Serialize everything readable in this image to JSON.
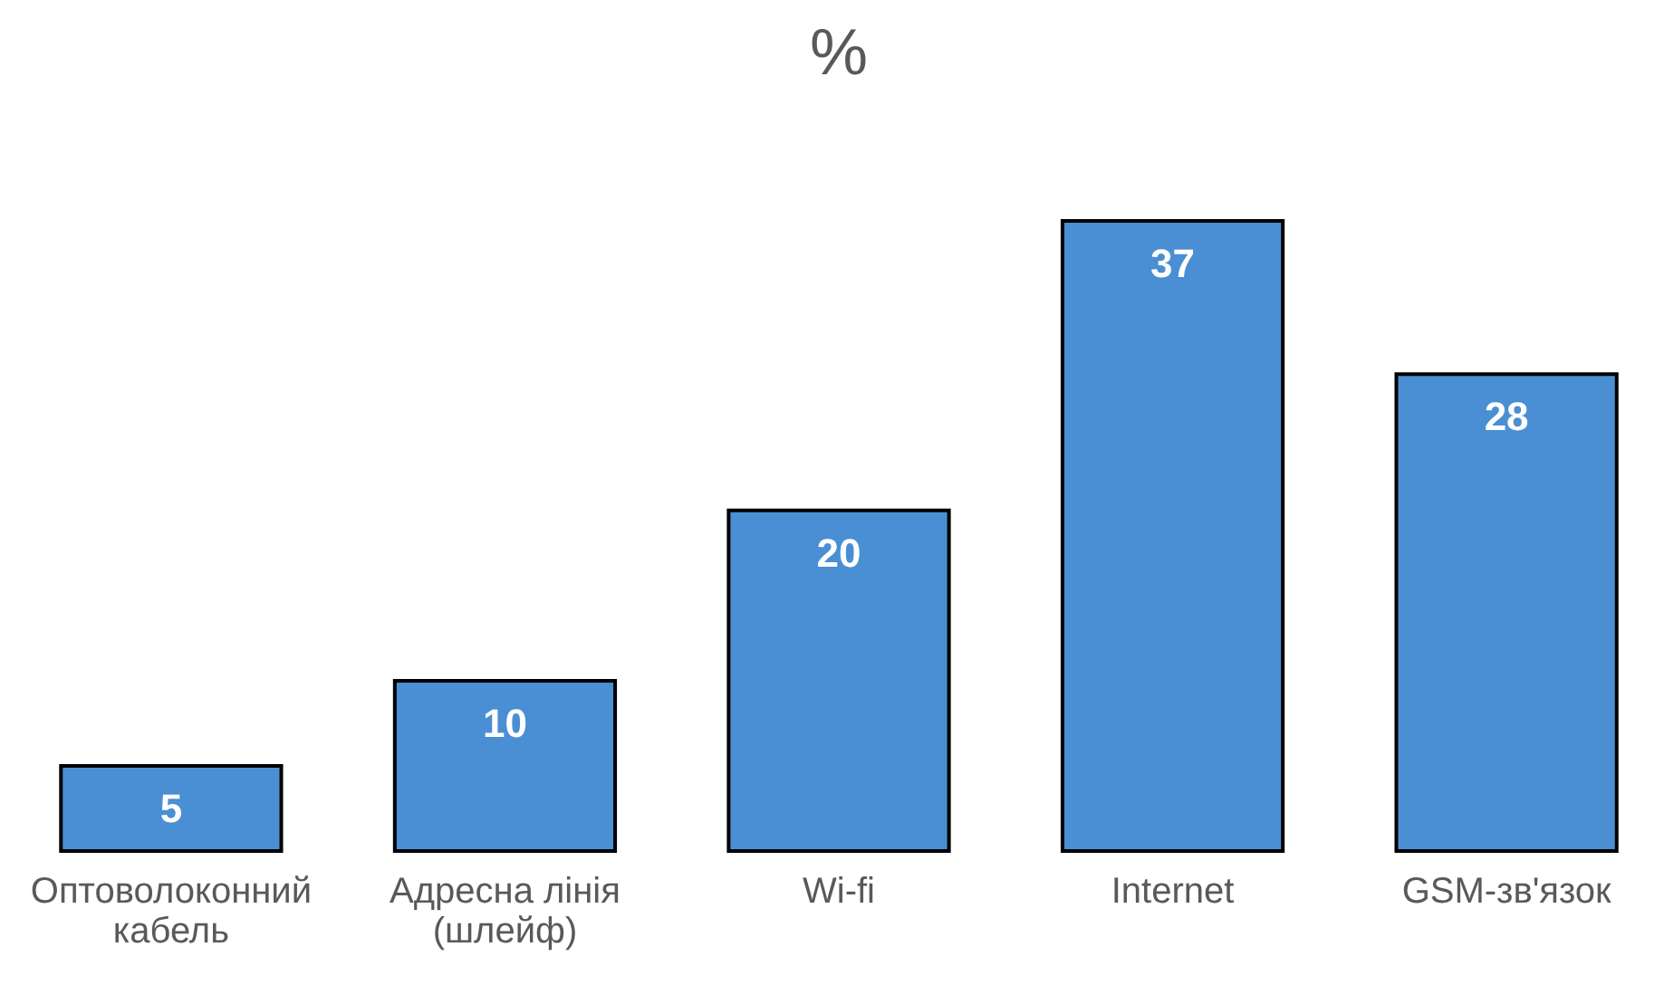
{
  "chart_data": {
    "type": "bar",
    "title": "%",
    "categories": [
      "Оптоволоконний кабель",
      "Адресна лінія (шлейф)",
      "Wi-fi",
      "Internet",
      "GSM-зв'язок"
    ],
    "values": [
      5,
      10,
      20,
      37,
      28
    ],
    "color": "#4a8fd4",
    "ylim": [
      0,
      37
    ],
    "data_labels": true,
    "tick_labels": "x",
    "grid": false
  }
}
